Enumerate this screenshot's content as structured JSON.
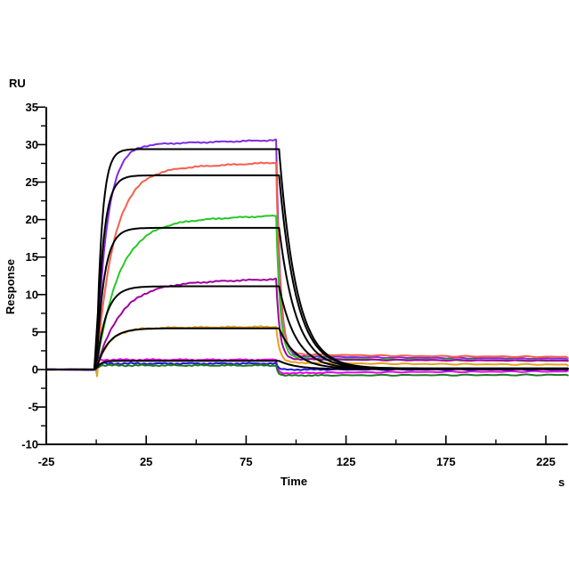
{
  "page": {
    "background": "#ffffff"
  },
  "chart_data": {
    "type": "line",
    "title": "",
    "xlabel": "Time",
    "x_unit": "s",
    "ylabel": "Response",
    "y_unit": "RU",
    "xlim": [
      -25,
      236
    ],
    "ylim": [
      -10,
      35
    ],
    "grid": false,
    "legend": "none",
    "axis_color": "#000000",
    "x_ticks_major": [
      -25,
      25,
      75,
      125,
      175,
      225
    ],
    "x_ticks_minor": [
      0,
      50,
      100,
      150,
      200
    ],
    "y_ticks_major": [
      -10,
      -5,
      0,
      5,
      10,
      15,
      20,
      25,
      30,
      35
    ],
    "y_ticks_minor": [
      -7.5,
      -2.5,
      2.5,
      7.5,
      12.5,
      17.5,
      22.5,
      27.5,
      32.5
    ],
    "phases": {
      "baseline_start": -25,
      "association_start": 0,
      "dissociation_start": 90,
      "end": 236
    },
    "series": [
      {
        "name": "purple",
        "role": "data",
        "color": "#7E2BE0",
        "response_at_injection_end": 30.6,
        "k_obs": 0.19,
        "drift": 0.008,
        "k_diss": 0.5,
        "tail_start": 1.8,
        "tail_end": 1.4,
        "baseline_dip": 0
      },
      {
        "name": "red",
        "role": "data",
        "color": "#F4604C",
        "response_at_injection_end": 27.6,
        "k_obs": 0.115,
        "drift": 0.012,
        "k_diss": 0.5,
        "tail_start": 2.1,
        "tail_end": 1.6,
        "baseline_dip": -0.5
      },
      {
        "name": "green",
        "role": "data",
        "color": "#28C828",
        "response_at_injection_end": 20.5,
        "k_obs": 0.09,
        "drift": 0.01,
        "k_diss": 0.5,
        "tail_start": 1.6,
        "tail_end": 1.1,
        "baseline_dip": 0
      },
      {
        "name": "dark-magenta",
        "role": "data",
        "color": "#A000A0",
        "response_at_injection_end": 12.05,
        "k_obs": 0.085,
        "drift": 0.008,
        "k_diss": 0.55,
        "tail_start": 1.4,
        "tail_end": 1.15,
        "baseline_dip": -0.6
      },
      {
        "name": "orange",
        "role": "data",
        "color": "#E0A41C",
        "response_at_injection_end": 5.7,
        "k_obs": 0.16,
        "drift": 0.002,
        "k_diss": 0.55,
        "tail_start": 0.95,
        "tail_end": 0.6,
        "baseline_dip": -0.9
      },
      {
        "name": "magenta",
        "role": "data",
        "color": "#EE00EE",
        "response_at_injection_end": 1.3,
        "k_obs": 2.0,
        "drift": 0,
        "k_diss": 1.3,
        "tail_start": -0.5,
        "tail_end": -0.2,
        "baseline_dip": 1.8
      },
      {
        "name": "blue",
        "role": "data",
        "color": "#1A1AD8",
        "response_at_injection_end": 0.8,
        "k_obs": 1.2,
        "drift": 0,
        "k_diss": 1.0,
        "tail_start": 0.0,
        "tail_end": 0.0,
        "baseline_dip": 0
      },
      {
        "name": "dark-green",
        "role": "data",
        "color": "#1E7A1E",
        "response_at_injection_end": 0.55,
        "k_obs": 1.2,
        "drift": 0,
        "k_diss": 1.0,
        "tail_start": -0.8,
        "tail_end": -0.7,
        "baseline_dip": 0
      },
      {
        "name": "fit-1",
        "role": "fit",
        "color": "#000000",
        "response_at_injection_end": 29.4,
        "k_obs": 0.37,
        "drift": 0,
        "k_diss": 0.115,
        "tail_start": 0.15,
        "tail_end": 0.15,
        "baseline_dip": 0
      },
      {
        "name": "fit-2",
        "role": "fit",
        "color": "#000000",
        "response_at_injection_end": 25.9,
        "k_obs": 0.3,
        "drift": 0,
        "k_diss": 0.115,
        "tail_start": 0.15,
        "tail_end": 0.15,
        "baseline_dip": 0
      },
      {
        "name": "fit-3",
        "role": "fit",
        "color": "#000000",
        "response_at_injection_end": 18.9,
        "k_obs": 0.26,
        "drift": 0,
        "k_diss": 0.115,
        "tail_start": 0.12,
        "tail_end": 0.12,
        "baseline_dip": 0
      },
      {
        "name": "fit-4",
        "role": "fit",
        "color": "#000000",
        "response_at_injection_end": 11.1,
        "k_obs": 0.21,
        "drift": 0,
        "k_diss": 0.115,
        "tail_start": 0.1,
        "tail_end": 0.1,
        "baseline_dip": 0
      },
      {
        "name": "fit-5",
        "role": "fit",
        "color": "#000000",
        "response_at_injection_end": 5.5,
        "k_obs": 0.17,
        "drift": 0,
        "k_diss": 0.115,
        "tail_start": 0.08,
        "tail_end": 0.08,
        "baseline_dip": 0
      },
      {
        "name": "fit-6",
        "role": "fit",
        "color": "#000000",
        "response_at_injection_end": 1.15,
        "k_obs": 0.5,
        "drift": 0,
        "k_diss": 0.115,
        "tail_start": 0.05,
        "tail_end": 0.05,
        "baseline_dip": 0
      }
    ]
  }
}
